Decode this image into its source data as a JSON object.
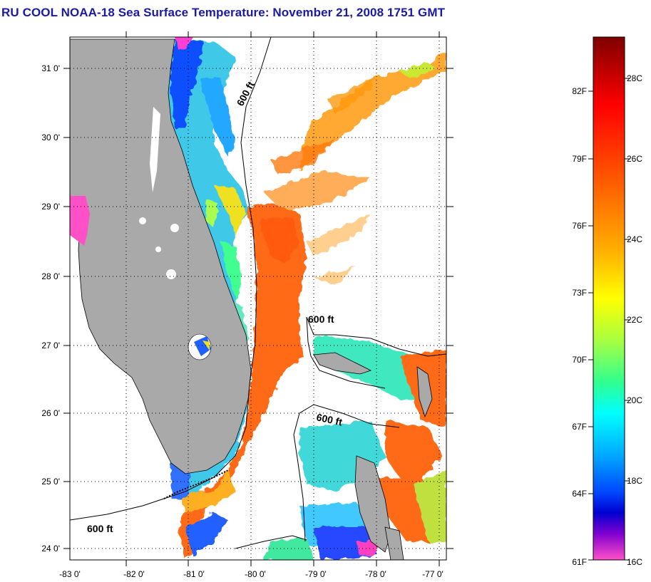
{
  "title": "RU COOL  NOAA-18  Sea Surface Temperature:  November 21, 2008 1751 GMT",
  "map": {
    "lat_ticks": [
      "31 0'",
      "30 0'",
      "29 0'",
      "28 0'",
      "27 0'",
      "26 0'",
      "25 0'",
      "24 0'"
    ],
    "lon_ticks": [
      "-83 0'",
      "-82 0'",
      "-81 0'",
      "-80 0'",
      "-79 0'",
      "-78 0'",
      "-77 0'"
    ],
    "grid": "dotted",
    "land_color": "#a9a9a9",
    "cloud_color": "#ffffff",
    "isobath": "600 ft",
    "contour_labels": [
      "600 ft",
      "600 ft",
      "600 ft",
      "600 ft"
    ]
  },
  "colorbar": {
    "fahrenheit_labels": [
      "82F",
      "79F",
      "76F",
      "73F",
      "70F",
      "67F",
      "64F",
      "61F"
    ],
    "celsius_labels": [
      "28C",
      "26C",
      "24C",
      "22C",
      "20C",
      "18C",
      "16C"
    ],
    "gradient_colors": [
      "#7f0000",
      "#ff0000",
      "#ff6a00",
      "#ffb000",
      "#ffff00",
      "#b0ff3a",
      "#3aff8a",
      "#00ffff",
      "#00a8ff",
      "#0050ff",
      "#0000d8",
      "#7a00d0",
      "#ff00ff",
      "#ff50c8"
    ]
  }
}
